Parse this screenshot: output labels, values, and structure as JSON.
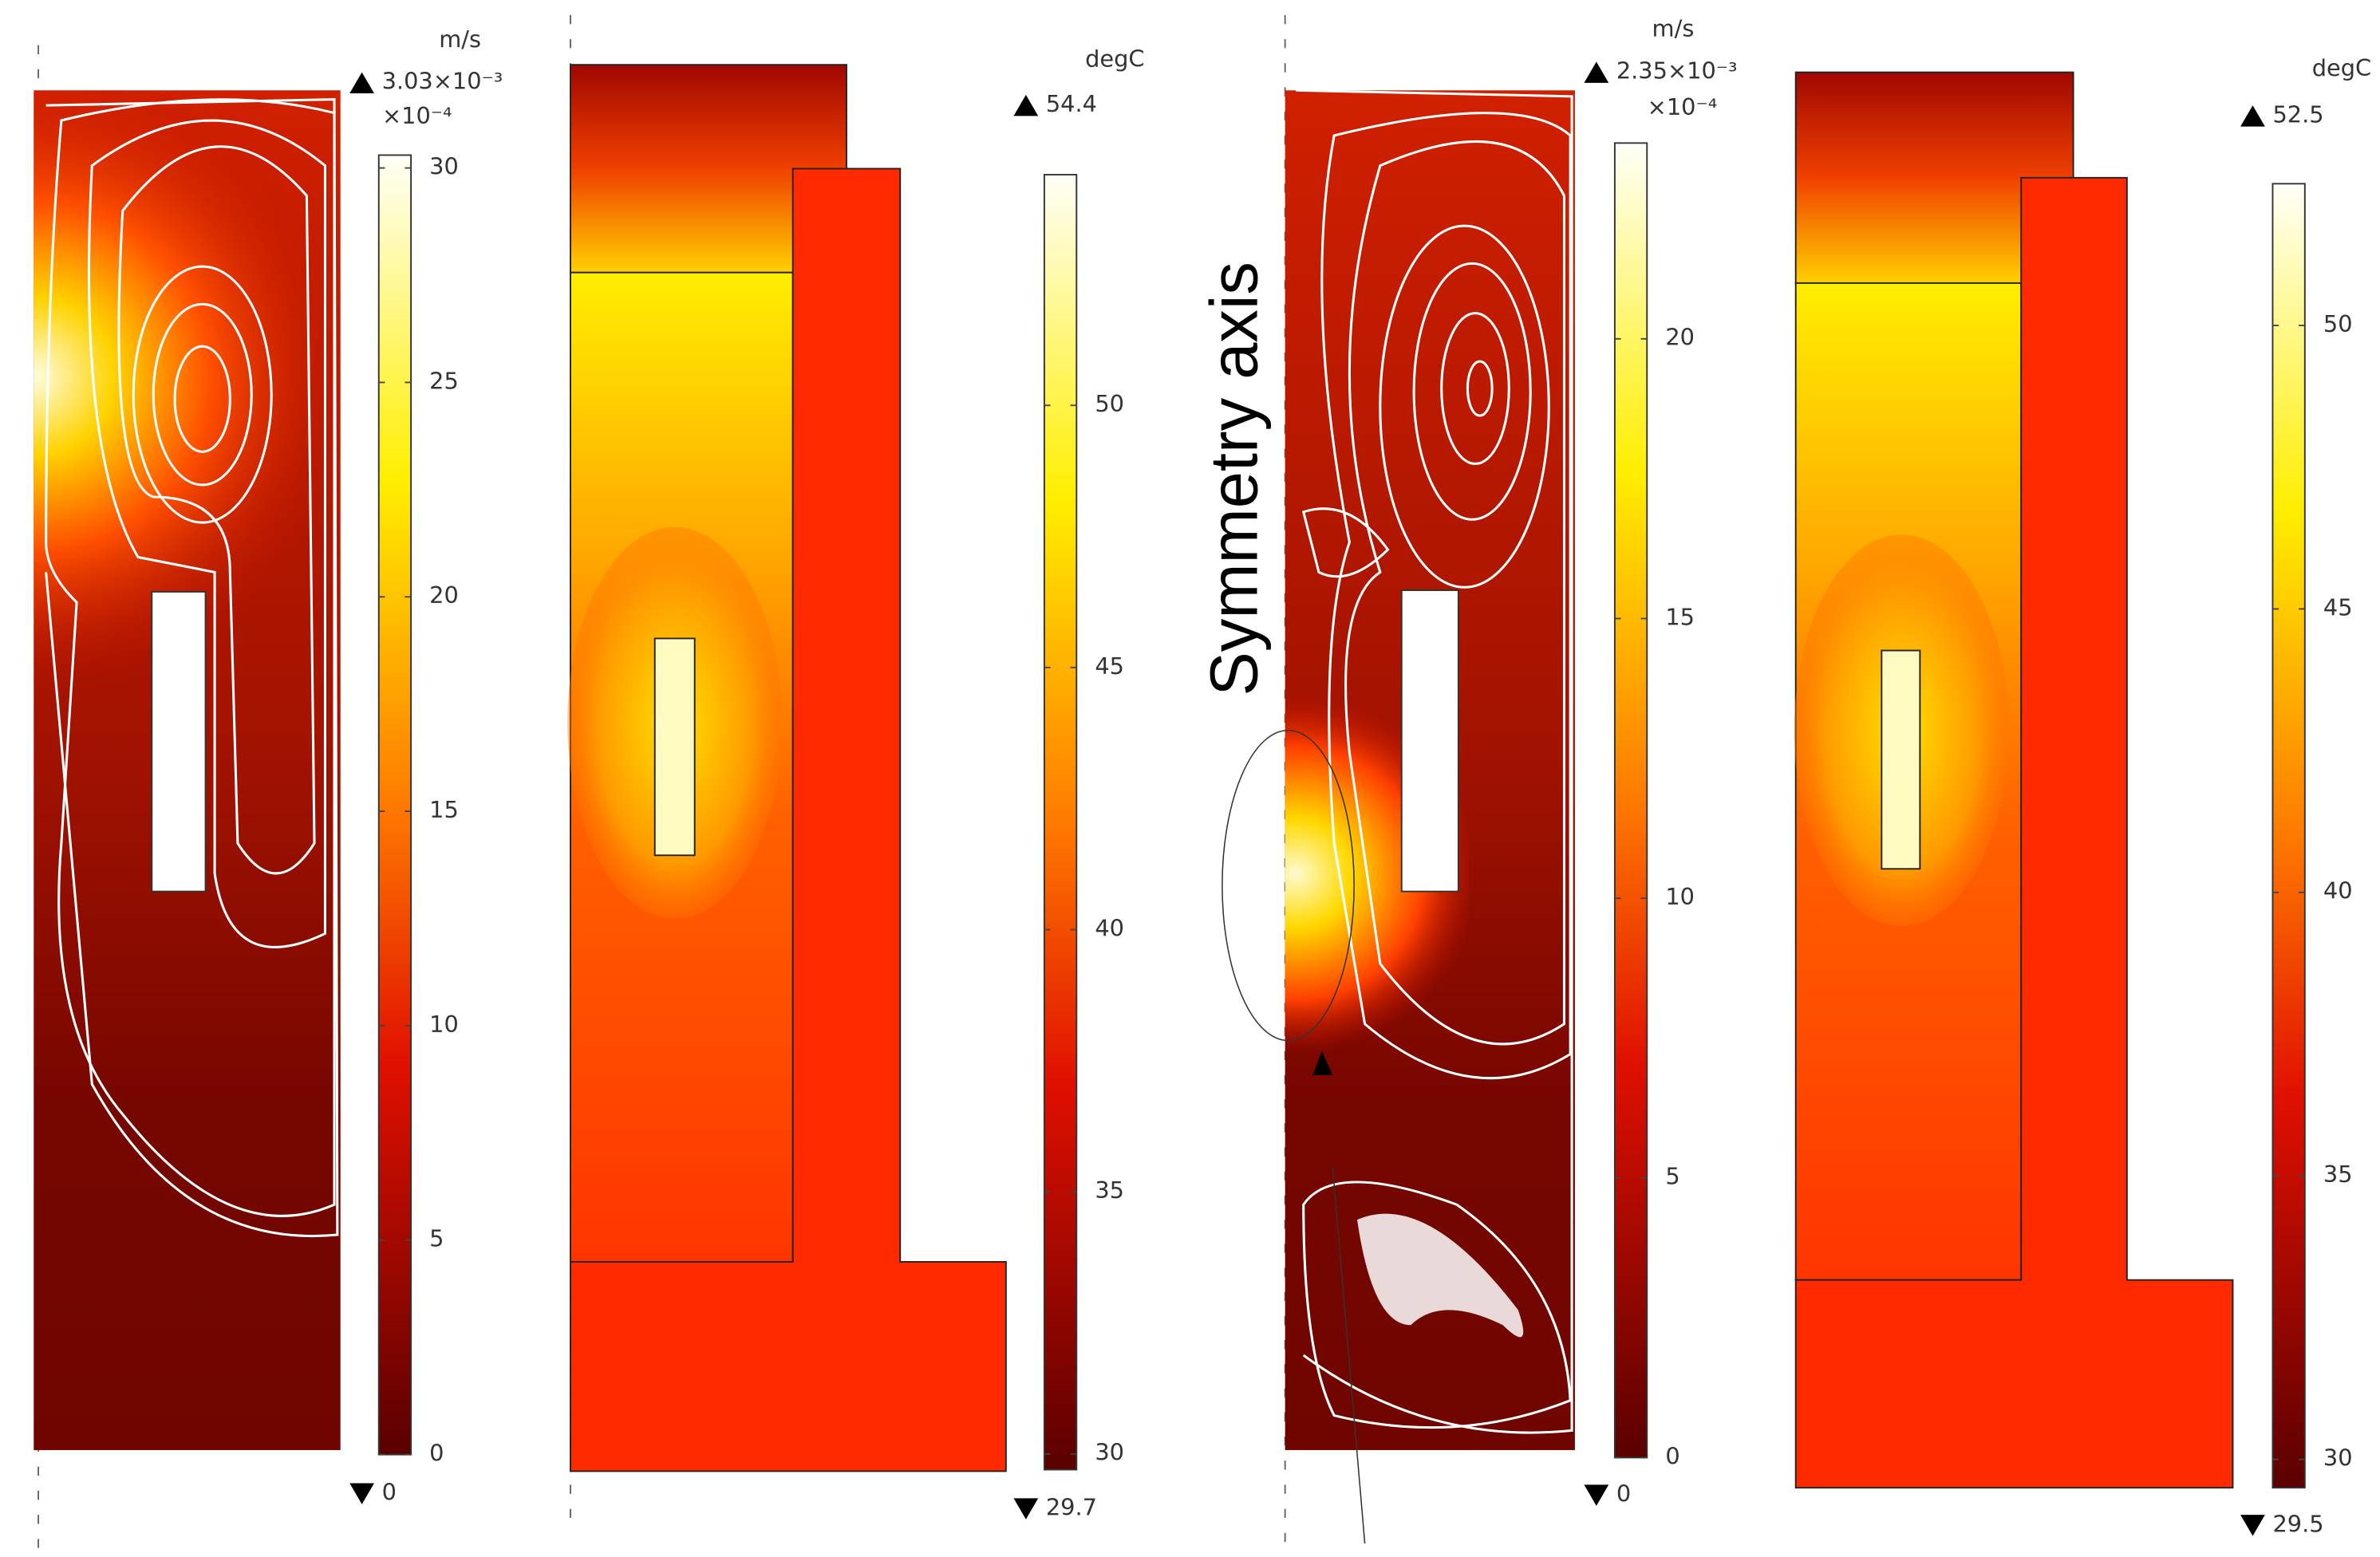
{
  "annotation": "Symmetry axis",
  "panels": [
    {
      "unit": "m/s",
      "max_label": "3.03×10⁻³",
      "multiplier": "×10⁻⁴",
      "ylim": [
        0,
        30.3
      ],
      "yticks": [
        0,
        5,
        10,
        15,
        20,
        25,
        30
      ]
    },
    {
      "unit": "degC",
      "ylim": [
        29.7,
        54.4
      ],
      "yticks": [
        30,
        35,
        40,
        45,
        50
      ]
    },
    {
      "unit": "m/s",
      "max_label": "2.35×10⁻³",
      "multiplier": "×10⁻⁴",
      "ylim": [
        0,
        23.5
      ],
      "yticks": [
        0,
        5,
        10,
        15,
        20
      ]
    },
    {
      "unit": "degC",
      "ylim": [
        29.5,
        52.5
      ],
      "yticks": [
        30,
        35,
        40,
        45,
        50
      ]
    }
  ]
}
